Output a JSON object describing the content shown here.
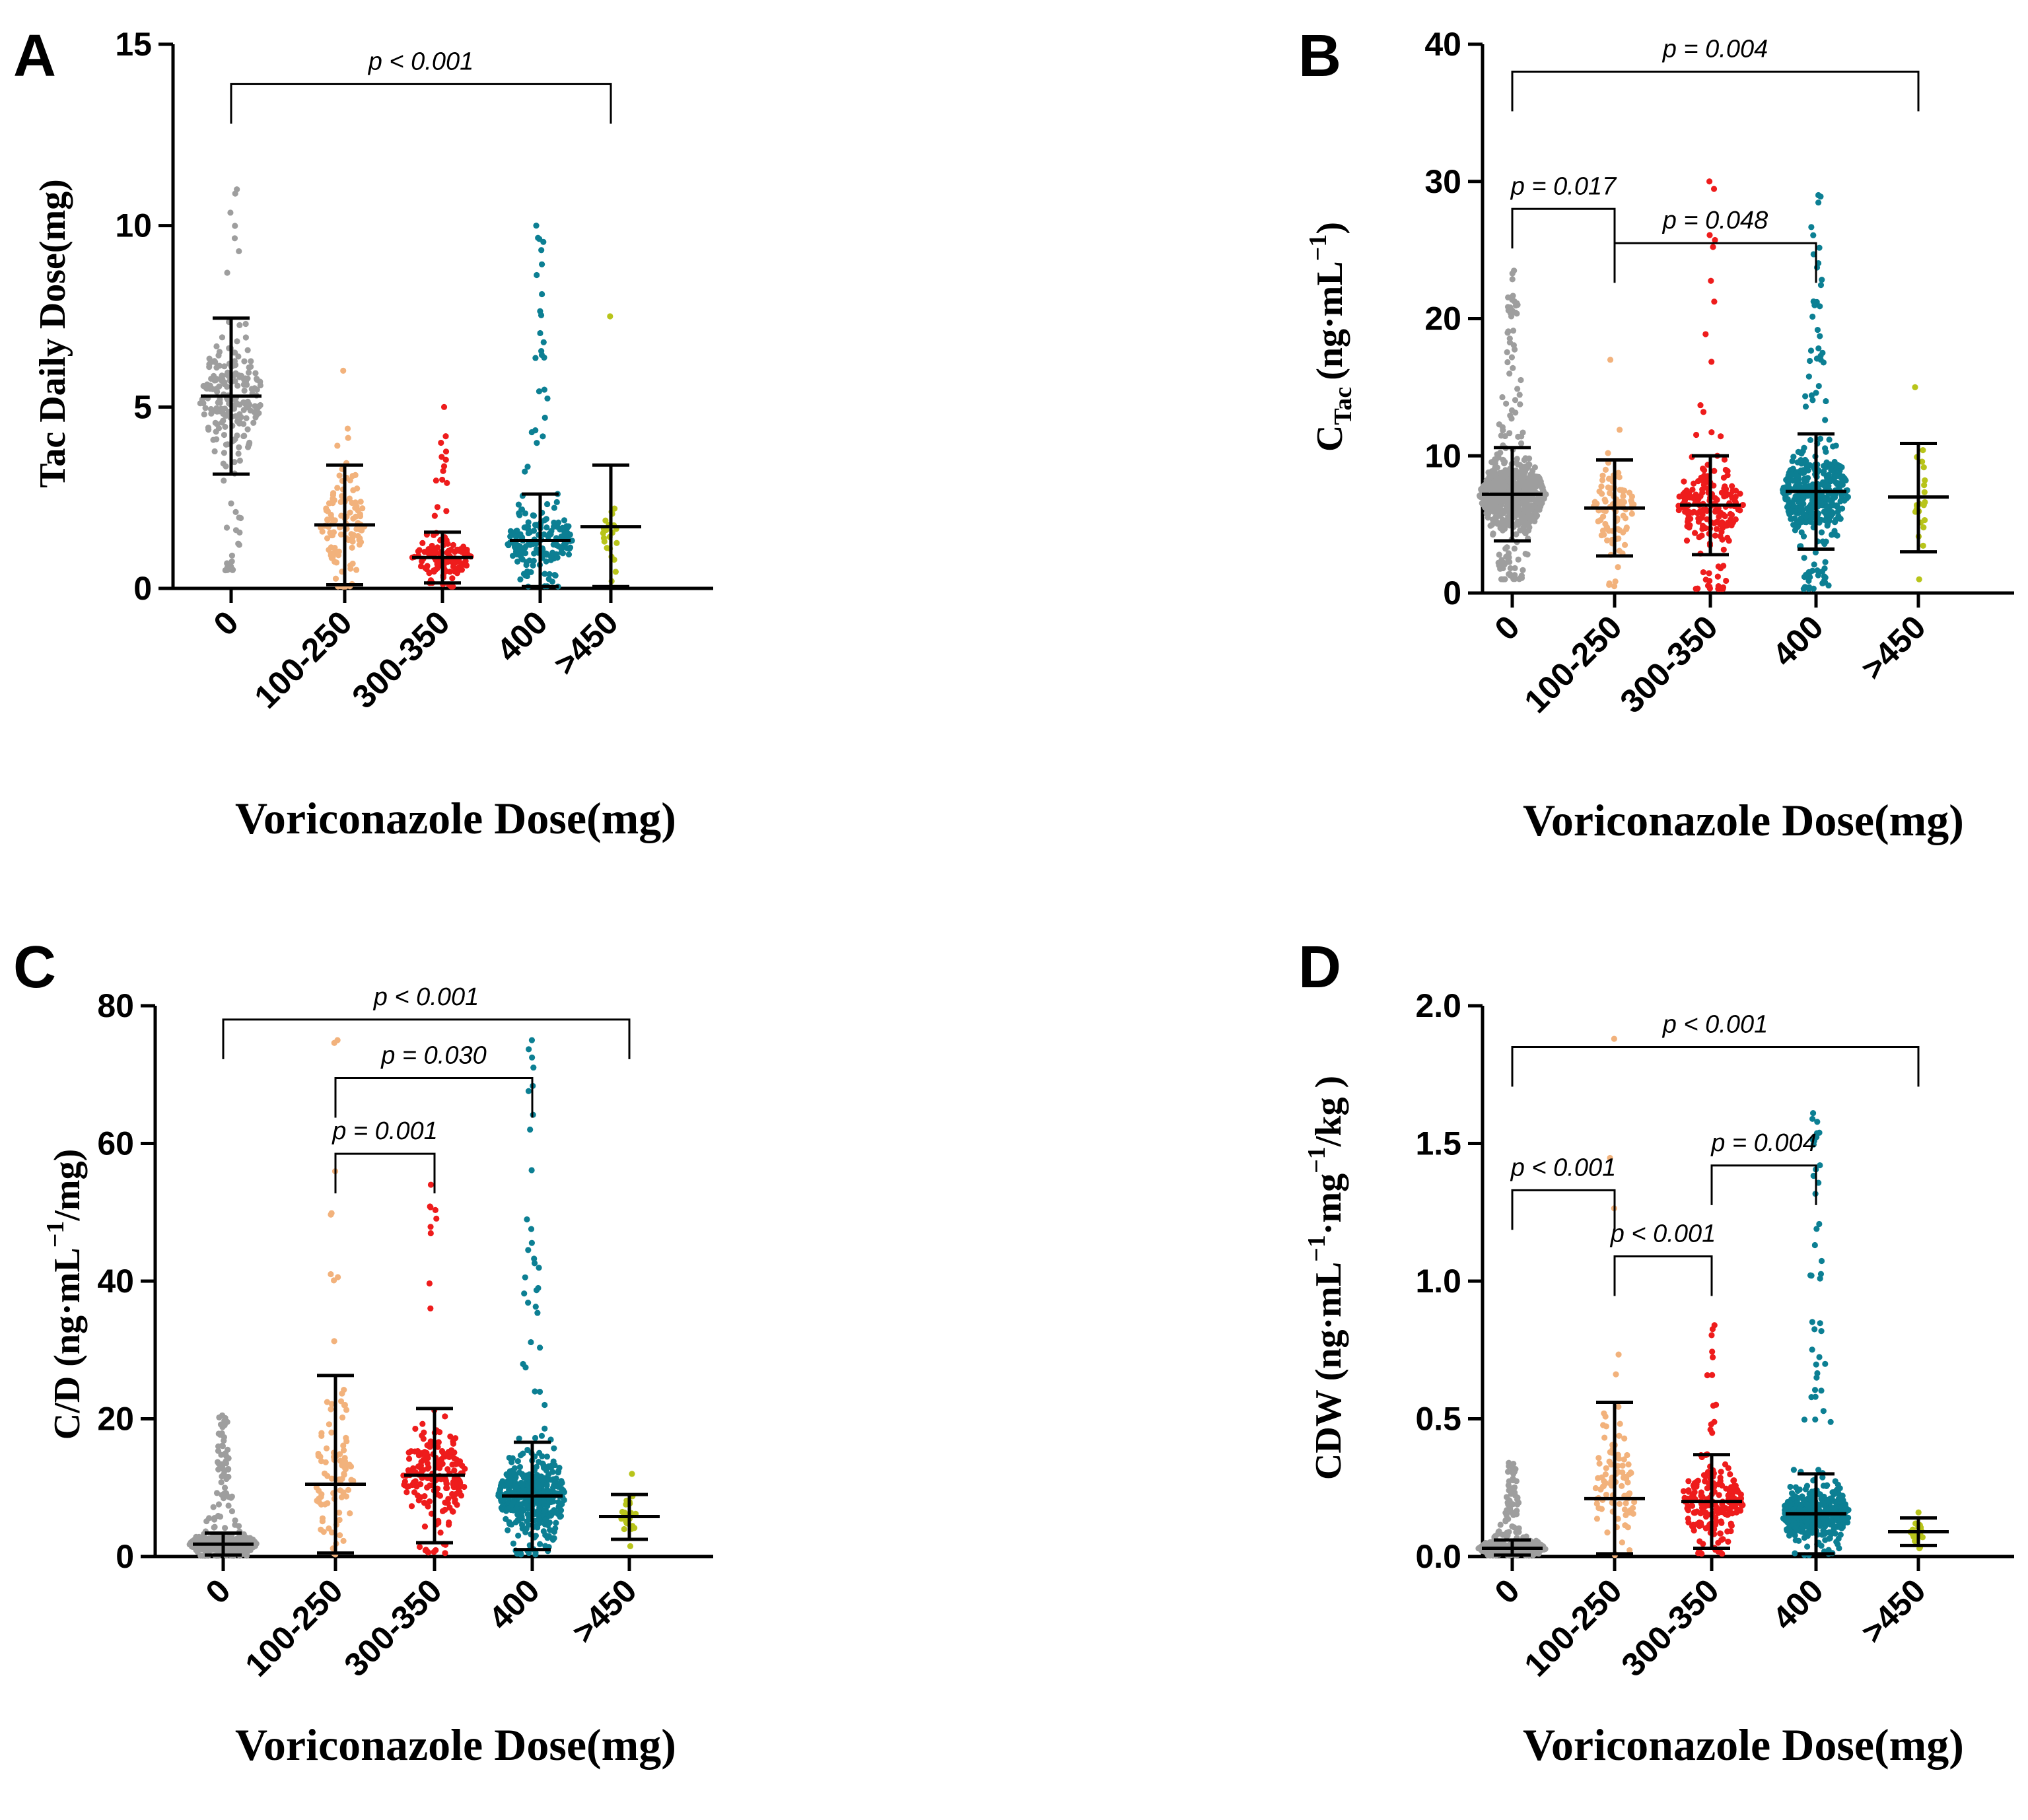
{
  "chart_data": [
    {
      "panel": "A",
      "type": "scatter",
      "xlabel": "Voriconazole Dose(mg)",
      "ylabel": "Tac Daily Dose(mg)",
      "ylim": [
        0,
        15
      ],
      "yticks": [
        0,
        5,
        10,
        15
      ],
      "ytick_labels": [
        "0",
        "5",
        "10",
        "15"
      ],
      "categories": [
        "0",
        "100-250",
        "300-350",
        "400",
        ">450"
      ],
      "colors": [
        "#9e9e9e",
        "#f2b27c",
        "#ee1c1c",
        "#0c7f93",
        "#b8c41a"
      ],
      "groups": [
        {
          "name": "0",
          "n": 220,
          "mean": 5.3,
          "sd_low": 3.15,
          "sd_high": 7.45,
          "min": 0.5,
          "max": 11.0
        },
        {
          "name": "100-250",
          "n": 110,
          "mean": 1.75,
          "sd_low": 0.1,
          "sd_high": 3.4,
          "min": 0.05,
          "max": 6.0
        },
        {
          "name": "300-350",
          "n": 130,
          "mean": 0.85,
          "sd_low": 0.15,
          "sd_high": 1.55,
          "min": 0.05,
          "max": 5.0
        },
        {
          "name": "400",
          "n": 190,
          "mean": 1.32,
          "sd_low": 0.05,
          "sd_high": 2.6,
          "min": 0.05,
          "max": 10.0
        },
        {
          "name": ">450",
          "n": 22,
          "mean": 1.7,
          "sd_low": 0.05,
          "sd_high": 3.4,
          "min": 0.2,
          "max": 7.5
        }
      ],
      "comparisons": [
        {
          "from": 0,
          "to": 4,
          "y": 13.9,
          "label": "p < 0.001"
        }
      ]
    },
    {
      "panel": "B",
      "type": "scatter",
      "xlabel": "Voriconazole Dose(mg)",
      "ylabel_main": "C",
      "ylabel_sub": "Tac",
      "ylabel_unit": "(ng·mL",
      "ylabel_sup": "−1",
      "ylabel_close": ")",
      "ylim": [
        0,
        40
      ],
      "yticks": [
        0,
        10,
        20,
        30,
        40
      ],
      "ytick_labels": [
        "0",
        "10",
        "20",
        "30",
        "40"
      ],
      "categories": [
        "0",
        "100-250",
        "300-350",
        "400",
        ">450"
      ],
      "colors": [
        "#9e9e9e",
        "#f2b27c",
        "#ee1c1c",
        "#0c7f93",
        "#b8c41a"
      ],
      "groups": [
        {
          "name": "0",
          "n": 700,
          "mean": 7.2,
          "sd_low": 3.8,
          "sd_high": 10.6,
          "min": 1.0,
          "max": 23.5
        },
        {
          "name": "100-250",
          "n": 90,
          "mean": 6.2,
          "sd_low": 2.7,
          "sd_high": 9.7,
          "min": 0.5,
          "max": 17.0
        },
        {
          "name": "300-350",
          "n": 200,
          "mean": 6.4,
          "sd_low": 2.8,
          "sd_high": 10.0,
          "min": 0.3,
          "max": 30.0
        },
        {
          "name": "400",
          "n": 420,
          "mean": 7.4,
          "sd_low": 3.2,
          "sd_high": 11.6,
          "min": 0.3,
          "max": 29.0
        },
        {
          "name": ">450",
          "n": 22,
          "mean": 7.0,
          "sd_low": 3.0,
          "sd_high": 10.9,
          "min": 1.0,
          "max": 15.0
        }
      ],
      "comparisons": [
        {
          "from": 0,
          "to": 4,
          "y": 38.0,
          "label": "p = 0.004"
        },
        {
          "from": 0,
          "to": 1,
          "y": 28.0,
          "label": "p = 0.017"
        },
        {
          "from": 1,
          "to": 3,
          "y": 25.5,
          "label": "p = 0.048"
        }
      ]
    },
    {
      "panel": "C",
      "type": "scatter",
      "xlabel": "Voriconazole Dose(mg)",
      "ylabel_main": "C/D (ng·mL",
      "ylabel_sup": "−1",
      "ylabel_close": "/mg)",
      "ylim": [
        0,
        80
      ],
      "yticks": [
        0,
        20,
        40,
        60,
        80
      ],
      "ytick_labels": [
        "0",
        "20",
        "40",
        "60",
        "80"
      ],
      "categories": [
        "0",
        "100-250",
        "300-350",
        "400",
        ">450"
      ],
      "colors": [
        "#9e9e9e",
        "#f2b27c",
        "#ee1c1c",
        "#0c7f93",
        "#b8c41a"
      ],
      "groups": [
        {
          "name": "0",
          "n": 600,
          "mean": 1.8,
          "sd_low": 0.2,
          "sd_high": 3.4,
          "min": 0.1,
          "max": 20.5
        },
        {
          "name": "100-250",
          "n": 90,
          "mean": 10.5,
          "sd_low": 0.5,
          "sd_high": 26.3,
          "min": 0.3,
          "max": 75.0
        },
        {
          "name": "300-350",
          "n": 200,
          "mean": 11.8,
          "sd_low": 2.0,
          "sd_high": 21.5,
          "min": 0.5,
          "max": 54.0
        },
        {
          "name": "400",
          "n": 420,
          "mean": 8.8,
          "sd_low": 1.0,
          "sd_high": 16.6,
          "min": 0.3,
          "max": 75.0
        },
        {
          "name": ">450",
          "n": 25,
          "mean": 5.8,
          "sd_low": 2.5,
          "sd_high": 9.0,
          "min": 1.5,
          "max": 12.0
        }
      ],
      "comparisons": [
        {
          "from": 0,
          "to": 4,
          "y": 78.0,
          "label": "p < 0.001"
        },
        {
          "from": 1,
          "to": 3,
          "y": 69.5,
          "label": "p = 0.030"
        },
        {
          "from": 1,
          "to": 2,
          "y": 58.5,
          "label": "p = 0.001"
        }
      ]
    },
    {
      "panel": "D",
      "type": "scatter",
      "xlabel": "Voriconazole Dose(mg)",
      "ylabel_main": "CDW (ng·mL",
      "ylabel_sup1": "−1",
      "ylabel_mid": "·mg",
      "ylabel_sup2": "−1",
      "ylabel_close": "/kg )",
      "ylim": [
        0,
        2.0
      ],
      "yticks": [
        0,
        0.5,
        1.0,
        1.5,
        2.0
      ],
      "ytick_labels": [
        "0.0",
        "0.5",
        "1.0",
        "1.5",
        "2.0"
      ],
      "categories": [
        "0",
        "100-250",
        "300-350",
        "400",
        ">450"
      ],
      "colors": [
        "#9e9e9e",
        "#f2b27c",
        "#ee1c1c",
        "#0c7f93",
        "#b8c41a"
      ],
      "groups": [
        {
          "name": "0",
          "n": 600,
          "mean": 0.03,
          "sd_low": 0.005,
          "sd_high": 0.06,
          "min": 0.005,
          "max": 0.34
        },
        {
          "name": "100-250",
          "n": 90,
          "mean": 0.21,
          "sd_low": 0.01,
          "sd_high": 0.56,
          "min": 0.005,
          "max": 1.88
        },
        {
          "name": "300-350",
          "n": 200,
          "mean": 0.2,
          "sd_low": 0.03,
          "sd_high": 0.37,
          "min": 0.01,
          "max": 0.84
        },
        {
          "name": "400",
          "n": 420,
          "mean": 0.155,
          "sd_low": 0.01,
          "sd_high": 0.3,
          "min": 0.005,
          "max": 1.61
        },
        {
          "name": ">450",
          "n": 25,
          "mean": 0.09,
          "sd_low": 0.04,
          "sd_high": 0.14,
          "min": 0.03,
          "max": 0.16
        }
      ],
      "comparisons": [
        {
          "from": 0,
          "to": 4,
          "y": 1.85,
          "label": "p < 0.001"
        },
        {
          "from": 0,
          "to": 1,
          "y": 1.33,
          "label": "p < 0.001"
        },
        {
          "from": 2,
          "to": 3,
          "y": 1.42,
          "label": "p = 0.004"
        },
        {
          "from": 1,
          "to": 2,
          "y": 1.09,
          "label": "p < 0.001"
        }
      ]
    }
  ]
}
